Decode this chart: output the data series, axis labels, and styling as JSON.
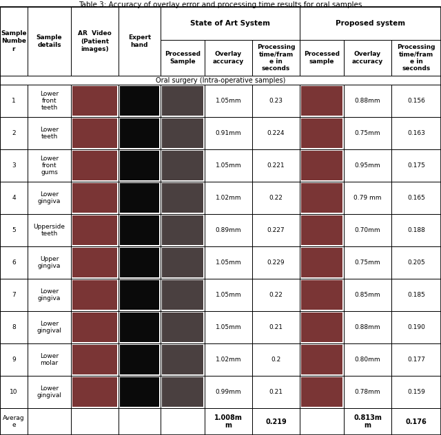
{
  "title": "Table 3: Accuracy of overlay error and processing time results for oral samples",
  "subheader": "Oral surgery (Intra-operative samples)",
  "rows": [
    {
      "num": "1",
      "detail": "Lower\nfront\nteeth",
      "overlay_acc": "1.05mm",
      "proc_time": "0.23",
      "prop_overlay": "0.88mm",
      "prop_time": "0.156"
    },
    {
      "num": "2",
      "detail": "Lower\nteeth",
      "overlay_acc": "0.91mm",
      "proc_time": "0.224",
      "prop_overlay": "0.75mm",
      "prop_time": "0.163"
    },
    {
      "num": "3",
      "detail": "Lower\nfront\ngums",
      "overlay_acc": "1.05mm",
      "proc_time": "0.221",
      "prop_overlay": "0.95mm",
      "prop_time": "0.175"
    },
    {
      "num": "4",
      "detail": "Lower\ngingiva",
      "overlay_acc": "1.02mm",
      "proc_time": "0.22",
      "prop_overlay": "0.79 mm",
      "prop_time": "0.165"
    },
    {
      "num": "5",
      "detail": "Upperside\nteeth",
      "overlay_acc": "0.89mm",
      "proc_time": "0.227",
      "prop_overlay": "0.70mm",
      "prop_time": "0.188"
    },
    {
      "num": "6",
      "detail": "Upper\ngingiva",
      "overlay_acc": "1.05mm",
      "proc_time": "0.229",
      "prop_overlay": "0.75mm",
      "prop_time": "0.205"
    },
    {
      "num": "7",
      "detail": "Lower\ngingiva",
      "overlay_acc": "1.05mm",
      "proc_time": "0.22",
      "prop_overlay": "0.85mm",
      "prop_time": "0.185"
    },
    {
      "num": "8",
      "detail": "Lower\ngingival",
      "overlay_acc": "1.05mm",
      "proc_time": "0.21",
      "prop_overlay": "0.88mm",
      "prop_time": "0.190"
    },
    {
      "num": "9",
      "detail": "Lower\nmolar",
      "overlay_acc": "1.02mm",
      "proc_time": "0.2",
      "prop_overlay": "0.80mm",
      "prop_time": "0.177"
    },
    {
      "num": "10",
      "detail": "Lower\ngingival",
      "overlay_acc": "0.99mm",
      "proc_time": "0.21",
      "prop_overlay": "0.78mm",
      "prop_time": "0.159"
    }
  ],
  "average": {
    "overlay_acc": "1.008m\nm",
    "proc_time": "0.219",
    "prop_overlay": "0.813m\nm",
    "prop_time": "0.176"
  },
  "bg_color": "#ffffff",
  "border_color": "#000000",
  "text_color": "#000000",
  "font_size": 6.5,
  "title_font_size": 7.5
}
